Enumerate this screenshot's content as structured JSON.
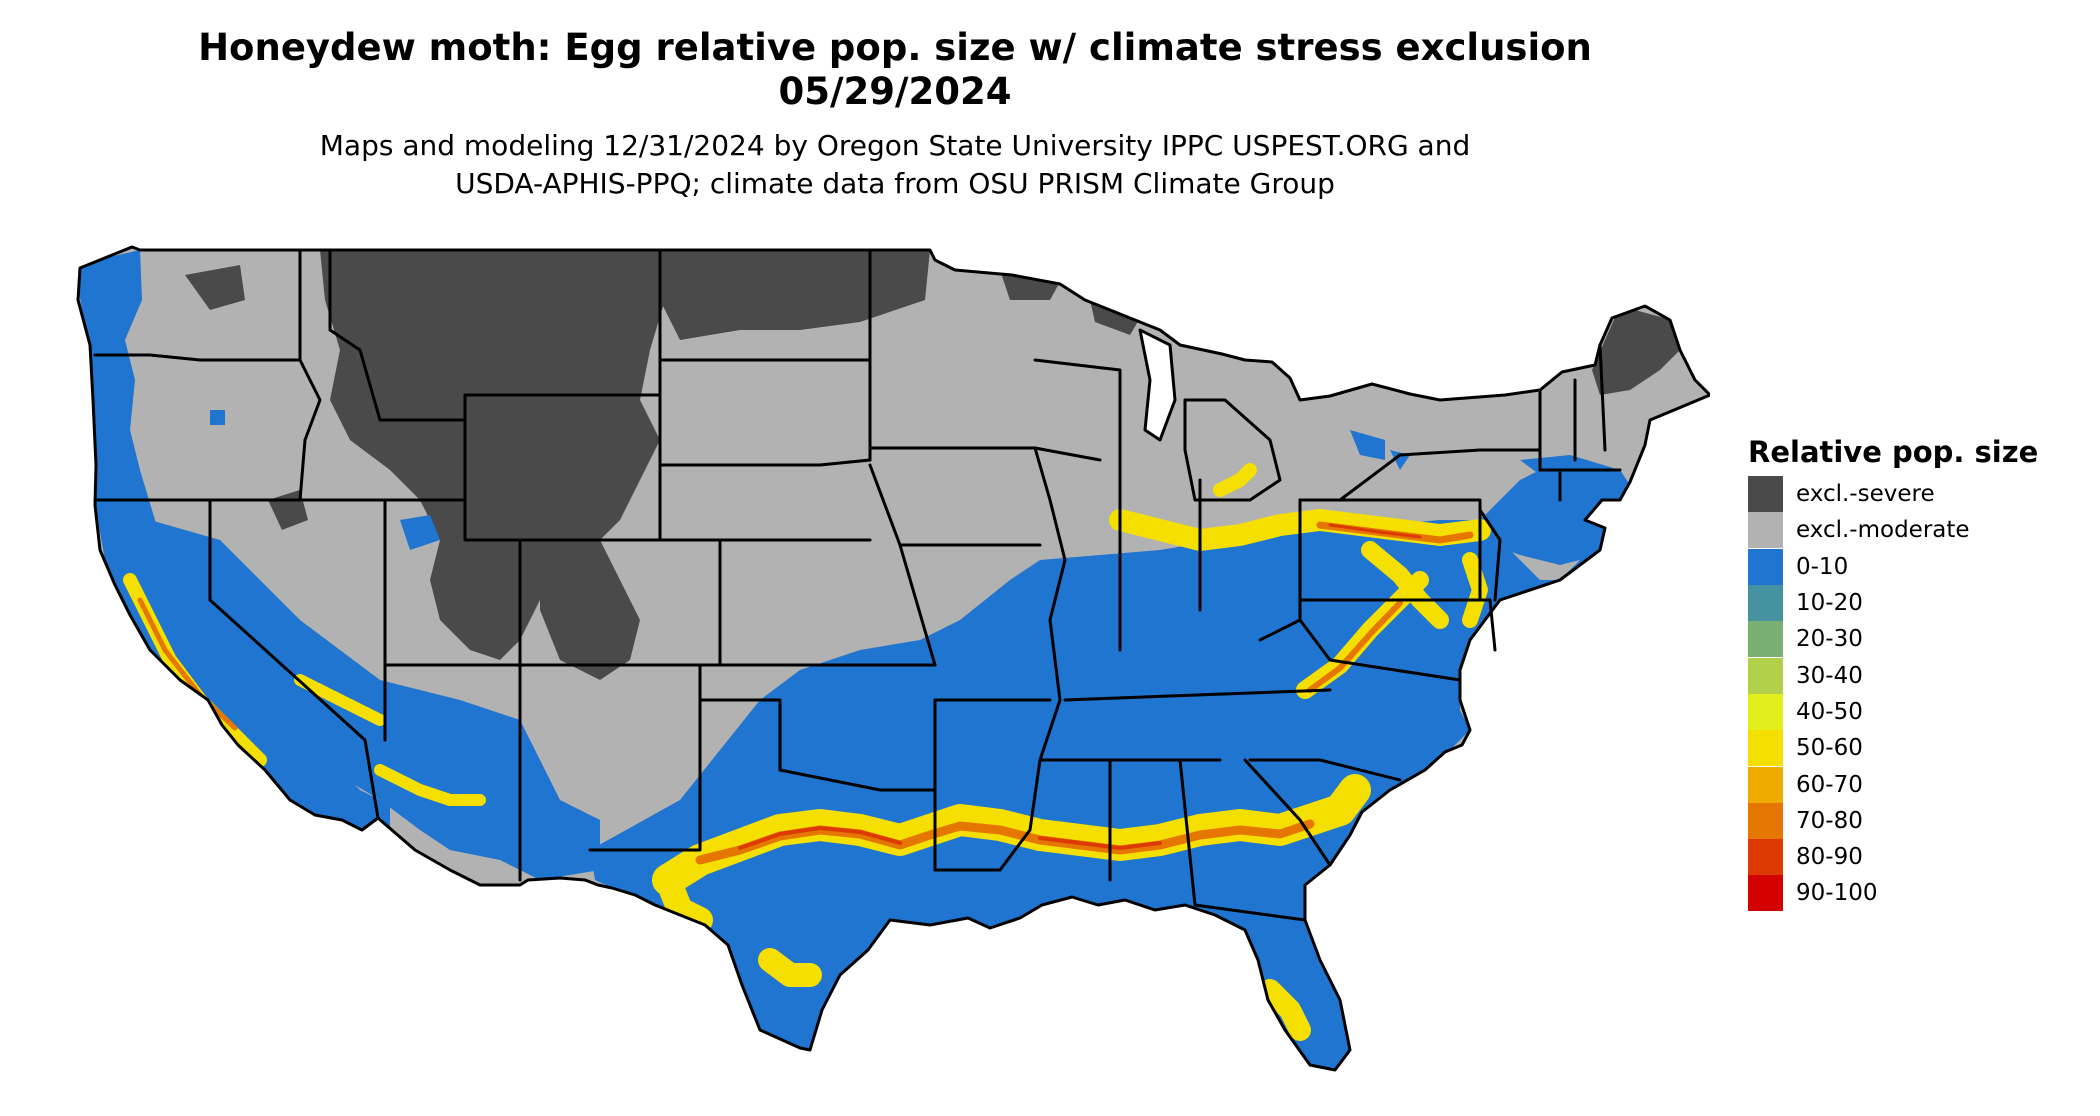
{
  "title": {
    "line1": "Honeydew moth: Egg relative pop. size w/ climate stress exclusion",
    "line2": "05/29/2024"
  },
  "subtitle": {
    "line1": "Maps and modeling 12/31/2024 by Oregon State University IPPC USPEST.ORG and",
    "line2": "USDA-APHIS-PPQ; climate data from OSU PRISM Climate Group"
  },
  "legend": {
    "title": "Relative pop. size",
    "items": [
      {
        "label": "excl.-severe",
        "color": "#4a4a4a"
      },
      {
        "label": "excl.-moderate",
        "color": "#b2b2b2"
      },
      {
        "label": "0-10",
        "color": "#1f75cf"
      },
      {
        "label": "10-20",
        "color": "#4592a0"
      },
      {
        "label": "20-30",
        "color": "#7aaf74"
      },
      {
        "label": "30-40",
        "color": "#b3d04a"
      },
      {
        "label": "40-50",
        "color": "#e3ef1c"
      },
      {
        "label": "50-60",
        "color": "#f5df00"
      },
      {
        "label": "60-70",
        "color": "#eeab00"
      },
      {
        "label": "70-80",
        "color": "#e57600"
      },
      {
        "label": "80-90",
        "color": "#dc3a00"
      },
      {
        "label": "90-100",
        "color": "#d20000"
      }
    ]
  },
  "colors": {
    "severe": "#4a4a4a",
    "moderate": "#b2b2b2",
    "low": "#1f75cf",
    "band_yellow": "#f5df00",
    "band_orange": "#e57600",
    "band_red": "#dc3a00",
    "border": "#000000"
  }
}
